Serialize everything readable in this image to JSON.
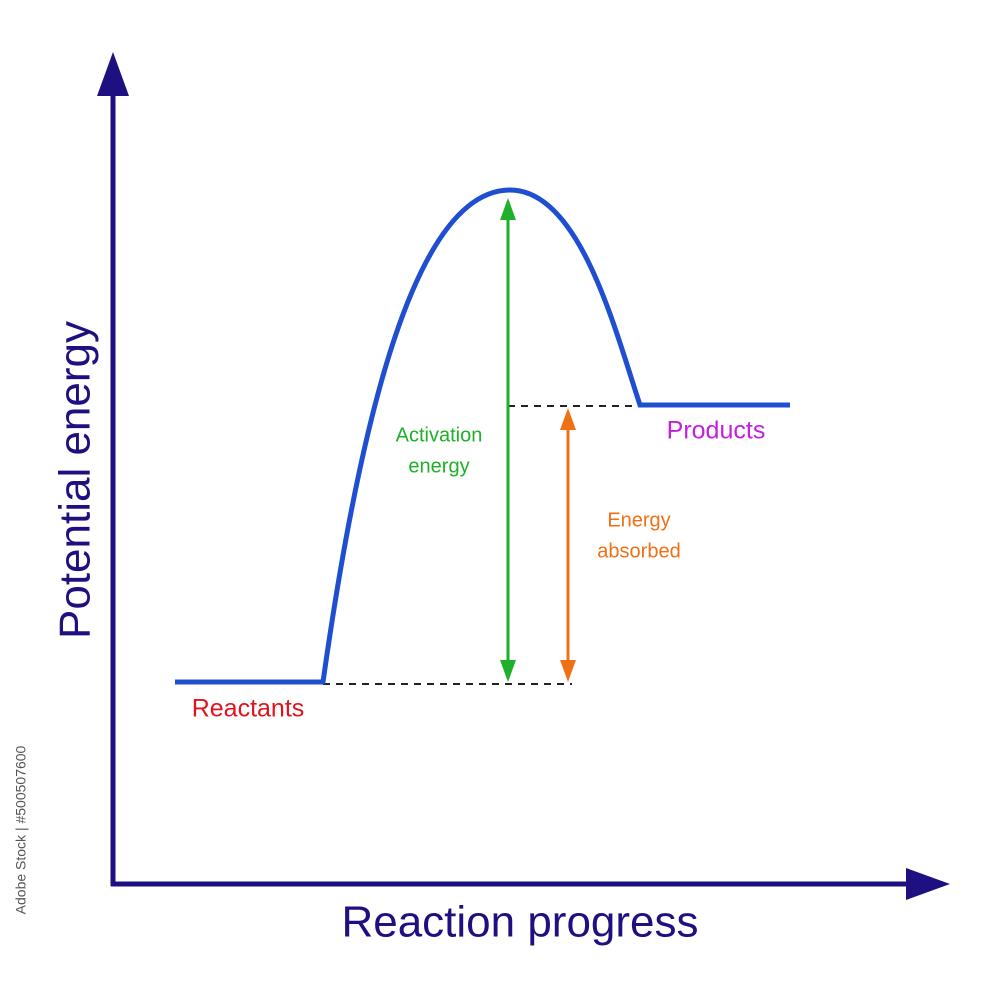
{
  "axes": {
    "y_label": "Potential energy",
    "x_label": "Reaction progress"
  },
  "labels": {
    "reactants": "Reactants",
    "products": "Products",
    "activation_energy": [
      "Activation",
      "energy"
    ],
    "energy_absorbed": [
      "Energy",
      "absorbed"
    ]
  },
  "watermark": "Adobe Stock | #500507600"
}
